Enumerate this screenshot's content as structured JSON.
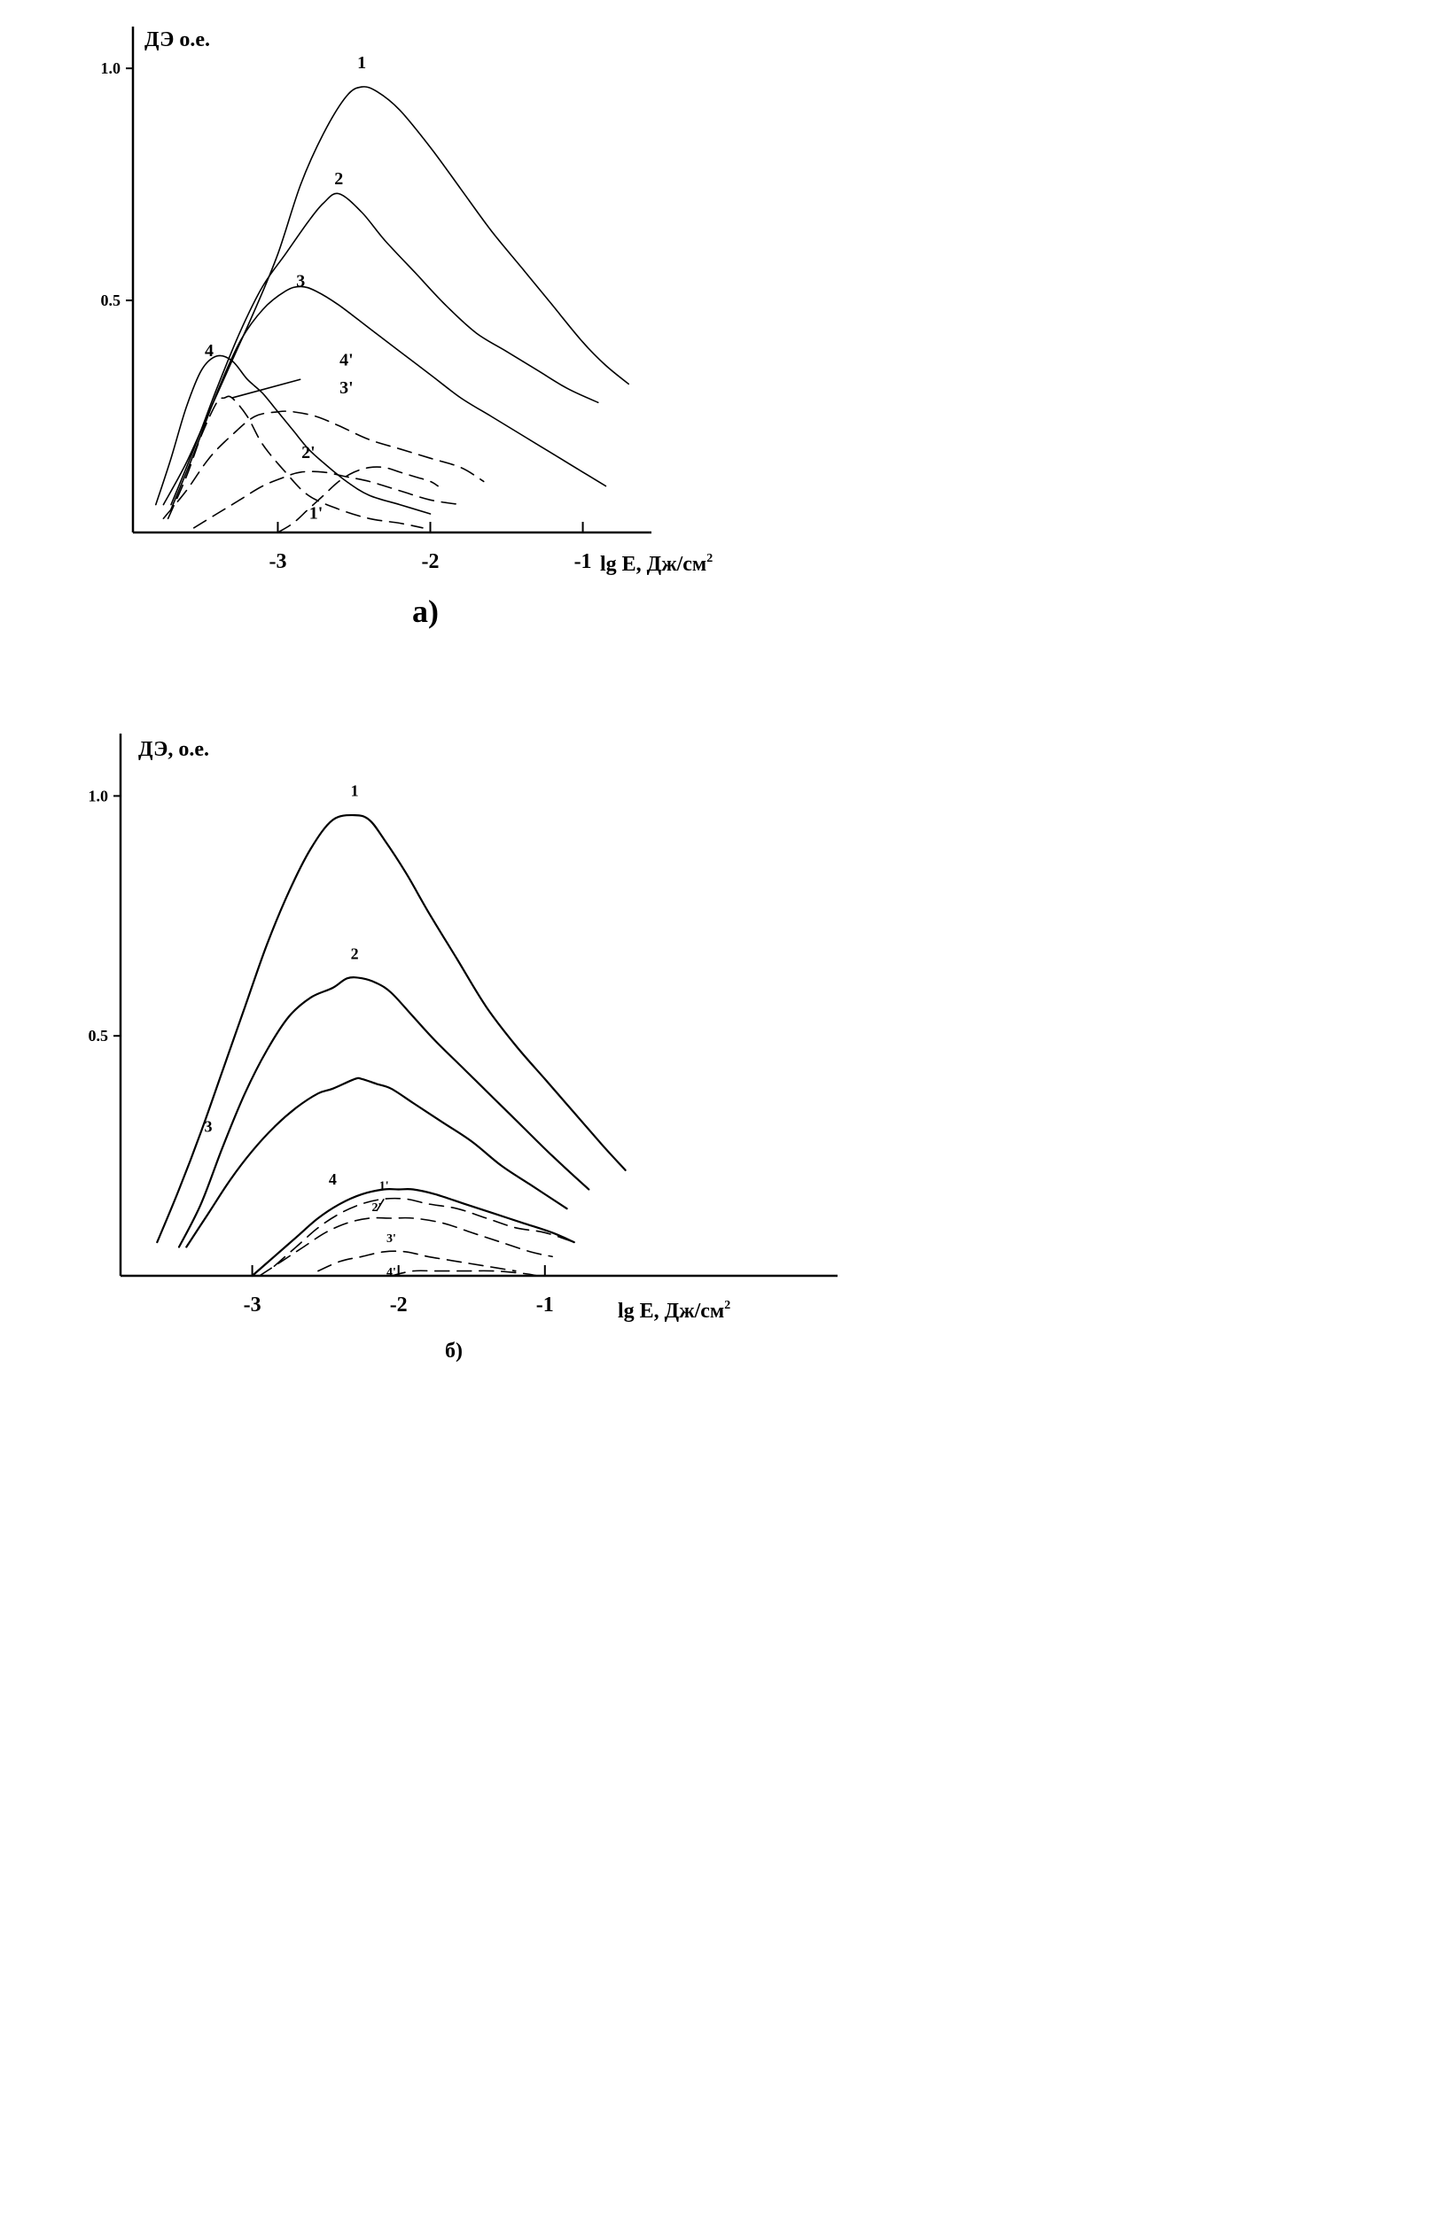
{
  "chart_data": [
    {
      "id": "a",
      "type": "line",
      "caption": "а)",
      "ylabel": "ДЭ о.е.",
      "xlabel": "lg E, Дж/см",
      "xlabel_sup": "2",
      "xticks": [
        "-3",
        "-2",
        "-1"
      ],
      "yticks": [
        "1.0",
        "0.5"
      ],
      "xlim": [
        -3.95,
        -0.55
      ],
      "ylim": [
        0,
        1.09
      ],
      "grid": false,
      "series": [
        {
          "name": "1",
          "style": "solid",
          "label_at": [
            -2.45,
            1.0
          ],
          "x": [
            -3.75,
            -3.6,
            -3.45,
            -3.3,
            -3.15,
            -3.0,
            -2.85,
            -2.7,
            -2.55,
            -2.45,
            -2.35,
            -2.2,
            -2.0,
            -1.8,
            -1.6,
            -1.4,
            -1.2,
            -1.0,
            -0.85,
            -0.7
          ],
          "y": [
            0.06,
            0.15,
            0.26,
            0.37,
            0.48,
            0.6,
            0.75,
            0.86,
            0.94,
            0.96,
            0.95,
            0.91,
            0.83,
            0.74,
            0.65,
            0.57,
            0.49,
            0.41,
            0.36,
            0.32
          ]
        },
        {
          "name": "2",
          "style": "solid",
          "label_at": [
            -2.6,
            0.75
          ],
          "x": [
            -3.7,
            -3.55,
            -3.4,
            -3.25,
            -3.1,
            -2.95,
            -2.8,
            -2.7,
            -2.6,
            -2.45,
            -2.3,
            -2.1,
            -1.9,
            -1.7,
            -1.5,
            -1.3,
            -1.1,
            -0.9
          ],
          "y": [
            0.06,
            0.18,
            0.31,
            0.43,
            0.53,
            0.6,
            0.67,
            0.71,
            0.73,
            0.69,
            0.63,
            0.56,
            0.49,
            0.43,
            0.39,
            0.35,
            0.31,
            0.28
          ]
        },
        {
          "name": "3",
          "style": "solid",
          "label_at": [
            -2.85,
            0.53
          ],
          "x": [
            -3.7,
            -3.55,
            -3.4,
            -3.25,
            -3.1,
            -2.95,
            -2.85,
            -2.75,
            -2.6,
            -2.4,
            -2.2,
            -2.0,
            -1.8,
            -1.6,
            -1.4,
            -1.2,
            -1.0,
            -0.85
          ],
          "y": [
            0.05,
            0.17,
            0.3,
            0.41,
            0.48,
            0.52,
            0.53,
            0.52,
            0.49,
            0.44,
            0.39,
            0.34,
            0.29,
            0.25,
            0.21,
            0.17,
            0.13,
            0.1
          ]
        },
        {
          "name": "4",
          "style": "solid",
          "label_at": [
            -3.45,
            0.38
          ],
          "x": [
            -3.8,
            -3.7,
            -3.6,
            -3.5,
            -3.4,
            -3.3,
            -3.2,
            -3.1,
            -3.0,
            -2.9,
            -2.8,
            -2.7,
            -2.55,
            -2.4,
            -2.2,
            -2.0
          ],
          "y": [
            0.06,
            0.16,
            0.27,
            0.35,
            0.38,
            0.37,
            0.33,
            0.3,
            0.26,
            0.22,
            0.18,
            0.15,
            0.11,
            0.08,
            0.06,
            0.04
          ]
        },
        {
          "name": "1'",
          "style": "dashed",
          "label_at": [
            -2.75,
            0.03
          ],
          "x": [
            -3.0,
            -2.9,
            -2.8,
            -2.7,
            -2.6,
            -2.5,
            -2.4,
            -2.3,
            -2.2,
            -2.1,
            -2.0,
            -1.95
          ],
          "y": [
            0.0,
            0.02,
            0.05,
            0.08,
            0.11,
            0.13,
            0.14,
            0.14,
            0.13,
            0.12,
            0.11,
            0.1
          ]
        },
        {
          "name": "2'",
          "style": "dashed",
          "label_at": [
            -2.8,
            0.16
          ],
          "x": [
            -3.55,
            -3.4,
            -3.25,
            -3.1,
            -2.95,
            -2.85,
            -2.7,
            -2.55,
            -2.4,
            -2.2,
            -2.0,
            -1.8
          ],
          "y": [
            0.01,
            0.04,
            0.07,
            0.1,
            0.12,
            0.13,
            0.13,
            0.12,
            0.11,
            0.09,
            0.07,
            0.06
          ]
        },
        {
          "name": "3'",
          "style": "dashed",
          "label_at": [
            -2.55,
            0.3
          ],
          "x": [
            -3.75,
            -3.6,
            -3.45,
            -3.3,
            -3.15,
            -3.0,
            -2.9,
            -2.75,
            -2.6,
            -2.4,
            -2.2,
            -2.0,
            -1.8,
            -1.65
          ],
          "y": [
            0.03,
            0.09,
            0.16,
            0.21,
            0.25,
            0.26,
            0.26,
            0.25,
            0.23,
            0.2,
            0.18,
            0.16,
            0.14,
            0.11
          ]
        },
        {
          "name": "4'",
          "style": "dashed",
          "label_at": [
            -2.55,
            0.36
          ],
          "x": [
            -3.72,
            -3.6,
            -3.5,
            -3.4,
            -3.35,
            -3.3,
            -3.2,
            -3.1,
            -2.95,
            -2.8,
            -2.6,
            -2.4,
            -2.2,
            -2.05
          ],
          "y": [
            0.03,
            0.12,
            0.21,
            0.28,
            0.29,
            0.29,
            0.25,
            0.19,
            0.13,
            0.08,
            0.05,
            0.03,
            0.02,
            0.01
          ]
        }
      ],
      "leader": {
        "from": [
          -3.3,
          0.29
        ],
        "to": [
          -2.85,
          0.33
        ]
      }
    },
    {
      "id": "b",
      "type": "line",
      "caption": "б)",
      "ylabel": "ДЭ, о.е.",
      "xlabel": "lg E, Дж/см",
      "xlabel_sup": "2",
      "xticks": [
        "-3",
        "-2",
        "-1"
      ],
      "yticks": [
        "1.0",
        "0.5"
      ],
      "xlim": [
        -3.9,
        1.0
      ],
      "ylim": [
        0,
        1.13
      ],
      "grid": false,
      "series": [
        {
          "name": "1",
          "style": "solid",
          "label_at": [
            -2.3,
            1.0
          ],
          "x": [
            -3.65,
            -3.5,
            -3.35,
            -3.2,
            -3.05,
            -2.9,
            -2.75,
            -2.6,
            -2.45,
            -2.3,
            -2.2,
            -2.1,
            -1.95,
            -1.8,
            -1.6,
            -1.4,
            -1.2,
            -1.0,
            -0.8,
            -0.6,
            -0.45
          ],
          "y": [
            0.07,
            0.18,
            0.3,
            0.43,
            0.56,
            0.69,
            0.8,
            0.89,
            0.95,
            0.96,
            0.95,
            0.91,
            0.84,
            0.76,
            0.66,
            0.56,
            0.48,
            0.41,
            0.34,
            0.27,
            0.22
          ]
        },
        {
          "name": "2",
          "style": "solid",
          "label_at": [
            -2.3,
            0.66
          ],
          "x": [
            -3.5,
            -3.35,
            -3.2,
            -3.05,
            -2.9,
            -2.75,
            -2.6,
            -2.45,
            -2.35,
            -2.25,
            -2.15,
            -2.05,
            -1.9,
            -1.75,
            -1.55,
            -1.35,
            -1.15,
            -0.95,
            -0.7
          ],
          "y": [
            0.06,
            0.15,
            0.27,
            0.38,
            0.47,
            0.54,
            0.58,
            0.6,
            0.62,
            0.62,
            0.61,
            0.59,
            0.54,
            0.49,
            0.43,
            0.37,
            0.31,
            0.25,
            0.18
          ]
        },
        {
          "name": "3",
          "style": "solid",
          "label_at": [
            -3.3,
            0.3
          ],
          "x": [
            -3.45,
            -3.3,
            -3.15,
            -3.0,
            -2.85,
            -2.7,
            -2.55,
            -2.45,
            -2.3,
            -2.25,
            -2.15,
            -2.05,
            -1.9,
            -1.7,
            -1.5,
            -1.3,
            -1.1,
            -0.85
          ],
          "y": [
            0.06,
            0.13,
            0.2,
            0.26,
            0.31,
            0.35,
            0.38,
            0.39,
            0.41,
            0.41,
            0.4,
            0.39,
            0.36,
            0.32,
            0.28,
            0.23,
            0.19,
            0.14
          ]
        },
        {
          "name": "4",
          "style": "solid",
          "label_at": [
            -2.45,
            0.19
          ],
          "x": [
            -3.0,
            -2.85,
            -2.7,
            -2.55,
            -2.4,
            -2.25,
            -2.1,
            -2.0,
            -1.9,
            -1.75,
            -1.55,
            -1.35,
            -1.15,
            -0.95,
            -0.8
          ],
          "y": [
            0.0,
            0.04,
            0.08,
            0.12,
            0.15,
            0.17,
            0.18,
            0.18,
            0.18,
            0.17,
            0.15,
            0.13,
            0.11,
            0.09,
            0.07
          ]
        },
        {
          "name": "1'",
          "style": "dashed",
          "label_at": [
            -2.1,
            0.18
          ],
          "x": [
            -2.85,
            -2.7,
            -2.55,
            -2.4,
            -2.25,
            -2.1,
            -1.95,
            -1.8,
            -1.6,
            -1.4,
            -1.2,
            -1.0,
            -0.8
          ],
          "y": [
            0.02,
            0.06,
            0.1,
            0.13,
            0.15,
            0.16,
            0.16,
            0.15,
            0.14,
            0.12,
            0.1,
            0.09,
            0.07
          ]
        },
        {
          "name": "2'",
          "style": "dashed",
          "label_at": [
            -2.15,
            0.135
          ],
          "x": [
            -2.95,
            -2.8,
            -2.65,
            -2.5,
            -2.35,
            -2.2,
            -2.05,
            -1.9,
            -1.7,
            -1.5,
            -1.3,
            -1.1,
            -0.95
          ],
          "y": [
            0.0,
            0.03,
            0.06,
            0.09,
            0.11,
            0.12,
            0.12,
            0.12,
            0.11,
            0.09,
            0.07,
            0.05,
            0.04
          ]
        },
        {
          "name": "3'",
          "style": "dashed",
          "label_at": [
            -2.05,
            0.07
          ],
          "x": [
            -2.55,
            -2.4,
            -2.25,
            -2.1,
            -1.95,
            -1.8,
            -1.6,
            -1.4,
            -1.2
          ],
          "y": [
            0.01,
            0.03,
            0.04,
            0.05,
            0.05,
            0.04,
            0.03,
            0.02,
            0.01
          ]
        },
        {
          "name": "4'",
          "style": "dashed",
          "label_at": [
            -2.05,
            0.0
          ],
          "x": [
            -2.05,
            -1.9,
            -1.75,
            -1.55,
            -1.35,
            -1.15,
            -1.05
          ],
          "y": [
            0.0,
            0.01,
            0.01,
            0.01,
            0.01,
            0.005,
            0.0
          ]
        }
      ],
      "leader": {
        "from": [
          -2.1,
          0.16
        ],
        "to": [
          -2.15,
          0.135
        ]
      }
    }
  ]
}
